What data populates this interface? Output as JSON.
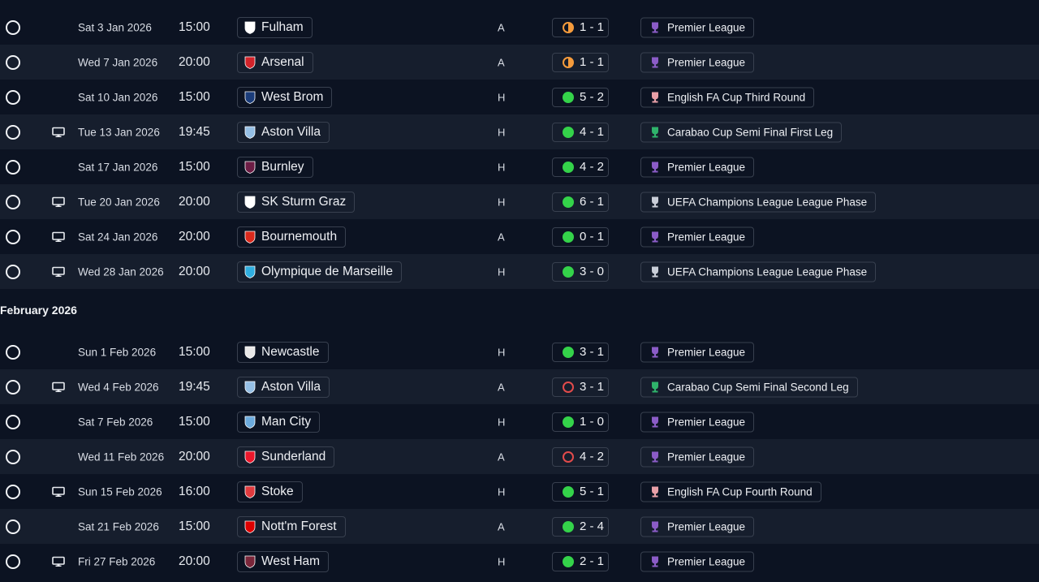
{
  "months": [
    "February 2026"
  ],
  "fixtures": [
    {
      "date": "Sat 3 Jan 2026",
      "time": "15:00",
      "team": "Fulham",
      "crest": "fulham-crest-icon",
      "crest_color": "#ffffff",
      "venue": "A",
      "result": "draw",
      "score": "1 - 1",
      "competition": "Premier League",
      "comp_icon": "premier-league-icon",
      "tv": false
    },
    {
      "date": "Wed 7 Jan 2026",
      "time": "20:00",
      "team": "Arsenal",
      "crest": "arsenal-crest-icon",
      "crest_color": "#d2232a",
      "venue": "A",
      "result": "draw",
      "score": "1 - 1",
      "competition": "Premier League",
      "comp_icon": "premier-league-icon",
      "tv": false
    },
    {
      "date": "Sat 10 Jan 2026",
      "time": "15:00",
      "team": "West Brom",
      "crest": "west-brom-crest-icon",
      "crest_color": "#1a3c7a",
      "venue": "H",
      "result": "win",
      "score": "5 - 2",
      "competition": "English FA Cup Third Round",
      "comp_icon": "fa-cup-icon",
      "tv": false
    },
    {
      "date": "Tue 13 Jan 2026",
      "time": "19:45",
      "team": "Aston Villa",
      "crest": "aston-villa-crest-icon",
      "crest_color": "#95bfe5",
      "venue": "H",
      "result": "win",
      "score": "4 - 1",
      "competition": "Carabao Cup Semi Final First Leg",
      "comp_icon": "carabao-cup-icon",
      "tv": true
    },
    {
      "date": "Sat 17 Jan 2026",
      "time": "15:00",
      "team": "Burnley",
      "crest": "burnley-crest-icon",
      "crest_color": "#6c1d45",
      "venue": "H",
      "result": "win",
      "score": "4 - 2",
      "competition": "Premier League",
      "comp_icon": "premier-league-icon",
      "tv": false
    },
    {
      "date": "Tue 20 Jan 2026",
      "time": "20:00",
      "team": "SK Sturm Graz",
      "crest": "sturm-graz-crest-icon",
      "crest_color": "#ffffff",
      "venue": "H",
      "result": "win",
      "score": "6 - 1",
      "competition": "UEFA Champions League League Phase",
      "comp_icon": "champions-league-icon",
      "tv": true
    },
    {
      "date": "Sat 24 Jan 2026",
      "time": "20:00",
      "team": "Bournemouth",
      "crest": "bournemouth-crest-icon",
      "crest_color": "#da291c",
      "venue": "A",
      "result": "win",
      "score": "0 - 1",
      "competition": "Premier League",
      "comp_icon": "premier-league-icon",
      "tv": true
    },
    {
      "date": "Wed 28 Jan 2026",
      "time": "20:00",
      "team": "Olympique de Marseille",
      "crest": "marseille-crest-icon",
      "crest_color": "#2faee0",
      "venue": "H",
      "result": "win",
      "score": "3 - 0",
      "competition": "UEFA Champions League League Phase",
      "comp_icon": "champions-league-icon",
      "tv": true
    },
    {
      "date": "Sun 1 Feb 2026",
      "time": "15:00",
      "team": "Newcastle",
      "crest": "newcastle-crest-icon",
      "crest_color": "#e8e8e8",
      "venue": "H",
      "result": "win",
      "score": "3 - 1",
      "competition": "Premier League",
      "comp_icon": "premier-league-icon",
      "tv": false
    },
    {
      "date": "Wed 4 Feb 2026",
      "time": "19:45",
      "team": "Aston Villa",
      "crest": "aston-villa-crest-icon",
      "crest_color": "#95bfe5",
      "venue": "A",
      "result": "loss",
      "score": "3 - 1",
      "competition": "Carabao Cup Semi Final Second Leg",
      "comp_icon": "carabao-cup-icon",
      "tv": true
    },
    {
      "date": "Sat 7 Feb 2026",
      "time": "15:00",
      "team": "Man City",
      "crest": "man-city-crest-icon",
      "crest_color": "#6cabdd",
      "venue": "H",
      "result": "win",
      "score": "1 - 0",
      "competition": "Premier League",
      "comp_icon": "premier-league-icon",
      "tv": false
    },
    {
      "date": "Wed 11 Feb 2026",
      "time": "20:00",
      "team": "Sunderland",
      "crest": "sunderland-crest-icon",
      "crest_color": "#eb172b",
      "venue": "A",
      "result": "loss",
      "score": "4 - 2",
      "competition": "Premier League",
      "comp_icon": "premier-league-icon",
      "tv": false
    },
    {
      "date": "Sun 15 Feb 2026",
      "time": "16:00",
      "team": "Stoke",
      "crest": "stoke-crest-icon",
      "crest_color": "#e03a3e",
      "venue": "H",
      "result": "win",
      "score": "5 - 1",
      "competition": "English FA Cup Fourth Round",
      "comp_icon": "fa-cup-icon",
      "tv": true
    },
    {
      "date": "Sat 21 Feb 2026",
      "time": "15:00",
      "team": "Nott'm Forest",
      "crest": "nottm-forest-crest-icon",
      "crest_color": "#dd0000",
      "venue": "A",
      "result": "win",
      "score": "2 - 4",
      "competition": "Premier League",
      "comp_icon": "premier-league-icon",
      "tv": false
    },
    {
      "date": "Fri 27 Feb 2026",
      "time": "20:00",
      "team": "West Ham",
      "crest": "west-ham-crest-icon",
      "crest_color": "#7a263a",
      "venue": "H",
      "result": "win",
      "score": "2 - 1",
      "competition": "Premier League",
      "comp_icon": "premier-league-icon",
      "tv": true
    }
  ],
  "comp_colors": {
    "premier-league-icon": "#8b5cc7",
    "fa-cup-icon": "#e8a0a8",
    "carabao-cup-icon": "#2fb36b",
    "champions-league-icon": "#c9ced8"
  }
}
